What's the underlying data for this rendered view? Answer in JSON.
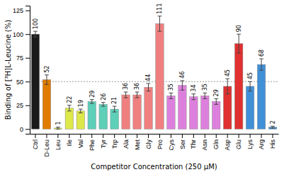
{
  "chart_data": {
    "type": "bar",
    "categories": [
      "Ctrl",
      "D-Leu",
      "Leu",
      "Ile",
      "Val",
      "Phe",
      "Tyr",
      "Trp",
      "Ala",
      "Met",
      "Gly",
      "Pro",
      "Cys",
      "Ser",
      "Thr",
      "Asn",
      "Gln",
      "Asp",
      "Glu",
      "Lys",
      "Arg",
      "His"
    ],
    "values": [
      100,
      52,
      1,
      22,
      19,
      29,
      26,
      21,
      36,
      36,
      44,
      111,
      35,
      46,
      34,
      35,
      29,
      45,
      90,
      45,
      68,
      2
    ],
    "errors": [
      3,
      5,
      1,
      3,
      2,
      2,
      2,
      3,
      3,
      3,
      4,
      8,
      3,
      5,
      3,
      3,
      3,
      8,
      10,
      5,
      6,
      1
    ],
    "colors": [
      "#1a1a1a",
      "#e07b00",
      "#dde84a",
      "#dde84a",
      "#dde84a",
      "#5ecfb8",
      "#5ecfb8",
      "#5ecfb8",
      "#f08080",
      "#f08080",
      "#f08080",
      "#f08080",
      "#dd80dd",
      "#dd80dd",
      "#dd80dd",
      "#dd80dd",
      "#dd80dd",
      "#e03030",
      "#e03030",
      "#4090d8",
      "#4090d8",
      "#4090d8"
    ],
    "xlabel": "Competitor Concentration (250 μM)",
    "ylabel": "Binding of [³H]L-Leucine (%)",
    "ylim": [
      -5,
      130
    ],
    "yticks": [
      0,
      25,
      50,
      75,
      100,
      125
    ],
    "hline": 50,
    "data_labels": true
  }
}
